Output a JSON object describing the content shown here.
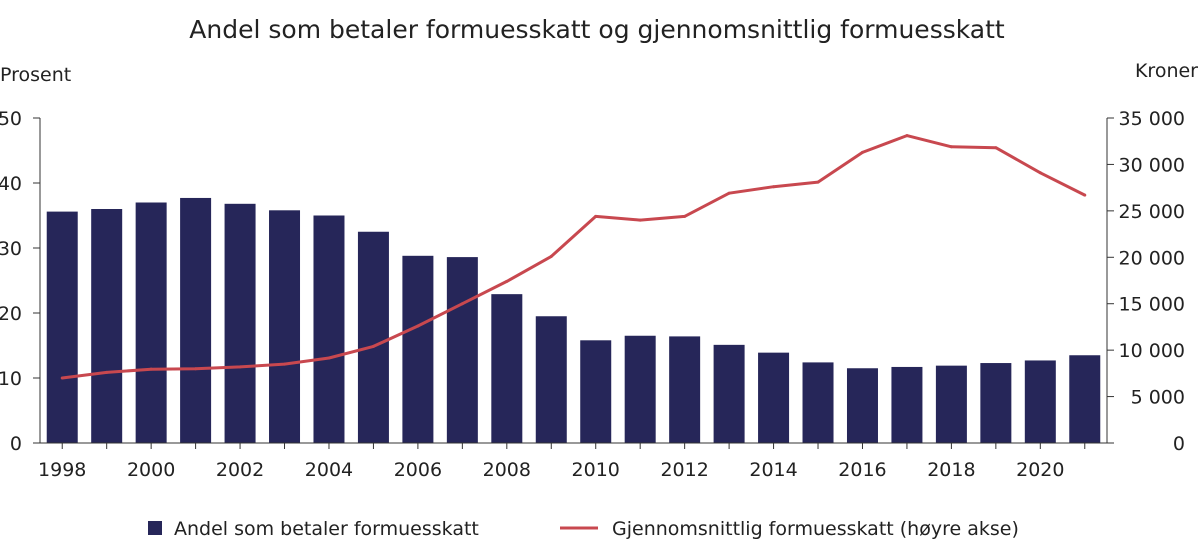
{
  "chart_data": {
    "type": "bar",
    "title": "Andel som betaler formuesskatt og gjennomsnittlig formuesskatt",
    "y_left_label": "Prosent",
    "y_right_label": "Kroner",
    "ylim_left": [
      0,
      50
    ],
    "ylim_right": [
      0,
      35000
    ],
    "yticks_left": [
      "0",
      "10",
      "20",
      "30",
      "40",
      "50"
    ],
    "yticks_right": [
      "0",
      "5 000",
      "10 000",
      "15 000",
      "20 000",
      "25 000",
      "30 000",
      "35 000"
    ],
    "xtick_labels": [
      "1998",
      "2000",
      "2002",
      "2004",
      "2006",
      "2008",
      "2010",
      "2012",
      "2014",
      "2016",
      "2018",
      "2020"
    ],
    "categories": [
      "1998",
      "1999",
      "2000",
      "2001",
      "2002",
      "2003",
      "2004",
      "2005",
      "2006",
      "2007",
      "2008",
      "2009",
      "2010",
      "2011",
      "2012",
      "2013",
      "2014",
      "2015",
      "2016",
      "2017",
      "2018",
      "2019",
      "2020",
      "2021"
    ],
    "series": [
      {
        "name": "Andel som betaler formuesskatt",
        "type": "bar",
        "axis": "left",
        "color": "#262659",
        "values": [
          35.6,
          36.0,
          37.0,
          37.7,
          36.8,
          35.8,
          35.0,
          32.5,
          28.8,
          28.6,
          22.9,
          19.5,
          15.8,
          16.5,
          16.4,
          15.1,
          13.9,
          12.4,
          11.5,
          11.7,
          11.9,
          12.3,
          12.7,
          13.5
        ]
      },
      {
        "name": "Gjennomsnittlig formuesskatt (høyre akse)",
        "type": "line",
        "axis": "right",
        "color": "#c8484f",
        "values": [
          7000,
          7600,
          7950,
          8000,
          8200,
          8500,
          9150,
          10400,
          12600,
          15000,
          17400,
          20100,
          24400,
          24000,
          24400,
          26900,
          27600,
          28100,
          31300,
          33100,
          31900,
          31800,
          29100,
          26700
        ]
      }
    ],
    "grid": false,
    "legend_position": "bottom"
  }
}
